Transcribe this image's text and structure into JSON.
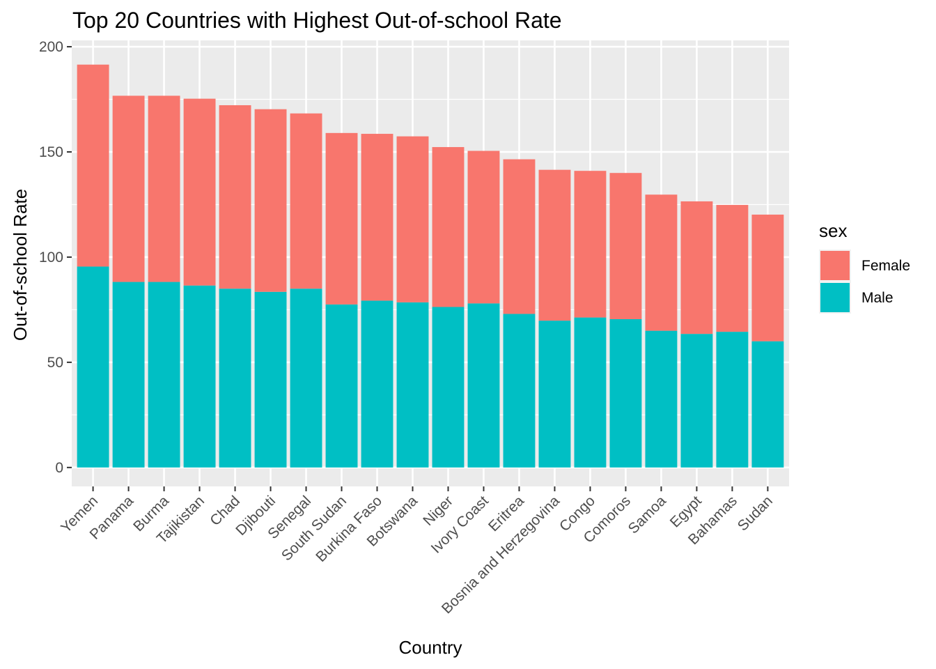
{
  "chart_data": {
    "type": "bar",
    "stacked": true,
    "title": "Top 20 Countries with Highest Out-of-school Rate",
    "xlabel": "Country",
    "ylabel": "Out-of-school Rate",
    "ylim": [
      -9,
      203
    ],
    "yticks": [
      0,
      50,
      100,
      150,
      200
    ],
    "grid": true,
    "legend": {
      "title": "sex",
      "position": "right"
    },
    "categories": [
      "Yemen",
      "Panama",
      "Burma",
      "Tajikistan",
      "Chad",
      "Djibouti",
      "Senegal",
      "South Sudan",
      "Burkina Faso",
      "Botswana",
      "Niger",
      "Ivory Coast",
      "Eritrea",
      "Bosnia and Herzegovina",
      "Congo",
      "Comoros",
      "Samoa",
      "Egypt",
      "Bahamas",
      "Sudan"
    ],
    "series": [
      {
        "name": "Male",
        "color": "#00BFC4",
        "values": [
          95.5,
          88.2,
          88.2,
          86.5,
          85.0,
          83.5,
          85.0,
          77.5,
          79.3,
          78.5,
          76.3,
          78.0,
          73.0,
          69.8,
          71.3,
          70.5,
          65.0,
          63.5,
          64.5,
          60.0
        ]
      },
      {
        "name": "Female",
        "color": "#F8766D",
        "values": [
          96.0,
          88.5,
          88.5,
          88.8,
          87.2,
          86.8,
          83.3,
          81.5,
          79.3,
          78.9,
          76.0,
          72.5,
          73.5,
          71.7,
          69.7,
          69.5,
          64.7,
          63.0,
          60.3,
          60.2
        ]
      }
    ]
  }
}
